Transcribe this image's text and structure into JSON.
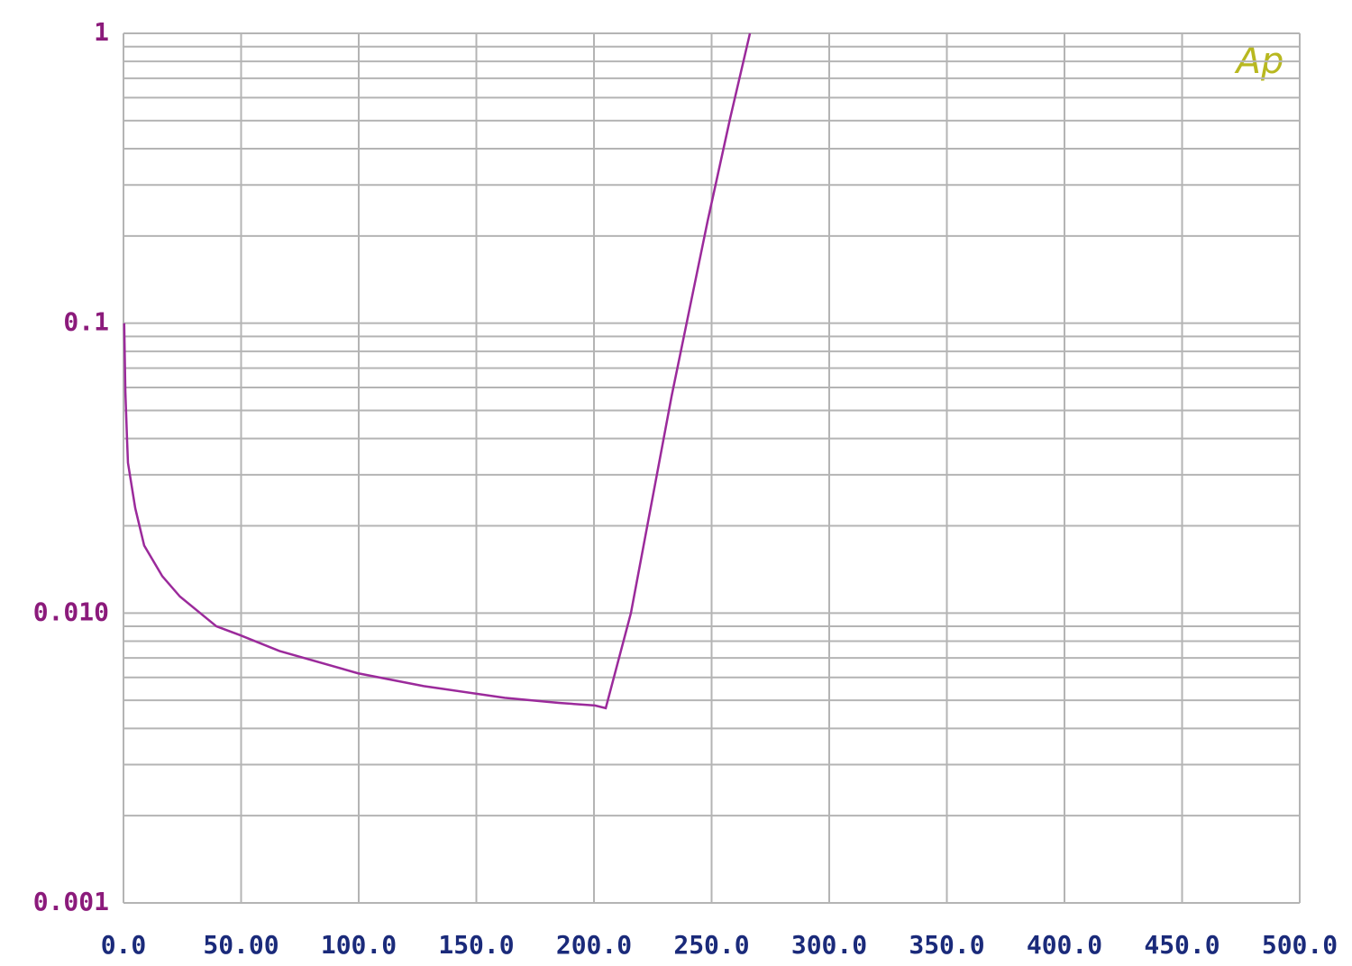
{
  "chart_data": {
    "type": "line",
    "annotation": "Ap",
    "x": [
      0.3,
      0.8,
      1.5,
      1.9,
      5,
      8.8,
      16.5,
      24,
      39.5,
      49.4,
      66.3,
      99.6,
      127.6,
      162,
      185,
      200.4,
      205,
      215.7,
      233,
      248.3,
      257.9,
      266.3
    ],
    "series": [
      {
        "color": "#9b2a9b",
        "values": [
          0.1,
          0.058,
          0.04,
          0.033,
          0.023,
          0.0171,
          0.0134,
          0.0114,
          0.009,
          0.0084,
          0.0074,
          0.0062,
          0.0056,
          0.0051,
          0.0049,
          0.0048,
          0.0047,
          0.01,
          0.056,
          0.225,
          0.51,
          1.0
        ]
      }
    ],
    "xlim": [
      0,
      500
    ],
    "xticks": [
      {
        "value": 0,
        "label": "0.0"
      },
      {
        "value": 50,
        "label": "50.00"
      },
      {
        "value": 100,
        "label": "100.0"
      },
      {
        "value": 150,
        "label": "150.0"
      },
      {
        "value": 200,
        "label": "200.0"
      },
      {
        "value": 250,
        "label": "250.0"
      },
      {
        "value": 300,
        "label": "300.0"
      },
      {
        "value": 350,
        "label": "350.0"
      },
      {
        "value": 400,
        "label": "400.0"
      },
      {
        "value": 450,
        "label": "450.0"
      },
      {
        "value": 500,
        "label": "500.0"
      }
    ],
    "ylim": [
      0.001,
      1
    ],
    "yticks": [
      0.001,
      {
        "value": 0.01,
        "label": "0.010"
      },
      0.1,
      1
    ],
    "log_y": true,
    "grid": true
  }
}
